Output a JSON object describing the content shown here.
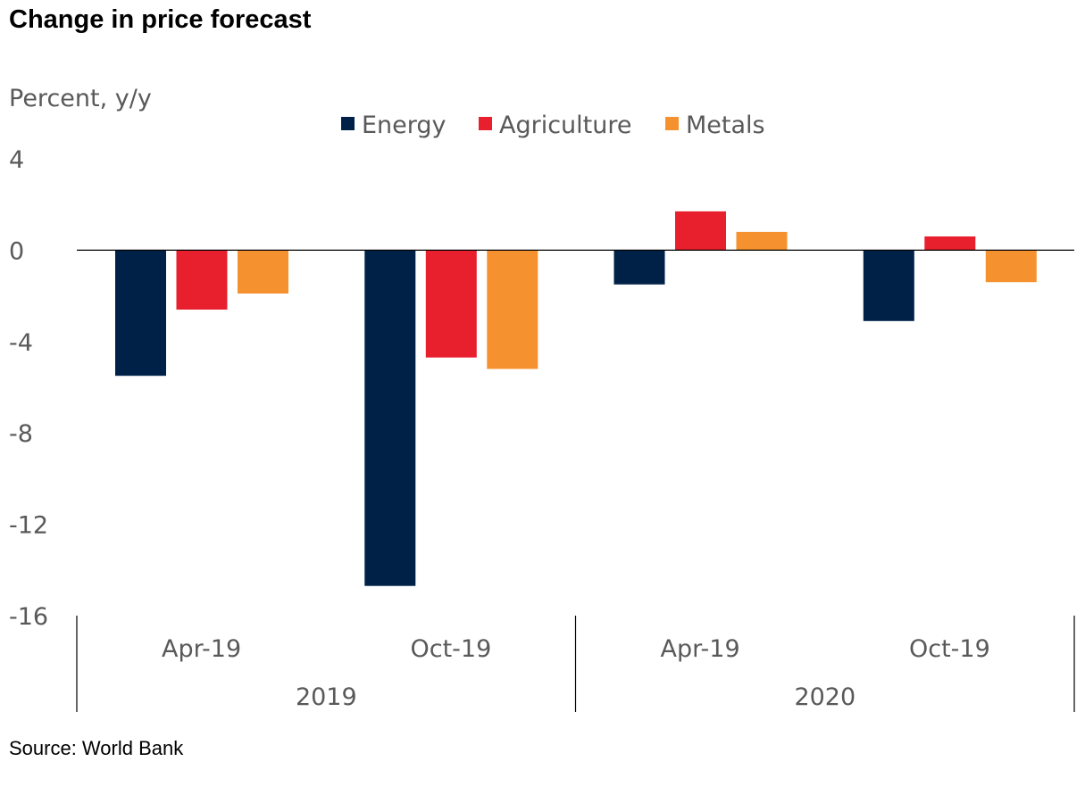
{
  "title": "Change in price forecast",
  "source": "Source: World Bank",
  "chart_data": {
    "type": "bar",
    "title": "Change in price forecast",
    "ylabel": "Percent, y/y",
    "xlabel": "",
    "ylim": [
      -16,
      4
    ],
    "yticks": [
      4,
      0,
      -4,
      -8,
      -12,
      -16
    ],
    "categories": [
      "Apr-19",
      "Oct-19",
      "Apr-19",
      "Oct-19"
    ],
    "groups": [
      {
        "label": "2019",
        "categories": [
          "Apr-19",
          "Oct-19"
        ]
      },
      {
        "label": "2020",
        "categories": [
          "Apr-19",
          "Oct-19"
        ]
      }
    ],
    "legend_position": "top-center",
    "series": [
      {
        "name": "Energy",
        "color": "#002147",
        "values": [
          -5.5,
          -14.7,
          -1.5,
          -3.1
        ]
      },
      {
        "name": "Agriculture",
        "color": "#E8202E",
        "values": [
          -2.6,
          -4.7,
          1.7,
          0.6
        ]
      },
      {
        "name": "Metals",
        "color": "#F5922F",
        "values": [
          -1.9,
          -5.2,
          0.8,
          -1.4
        ]
      }
    ]
  }
}
